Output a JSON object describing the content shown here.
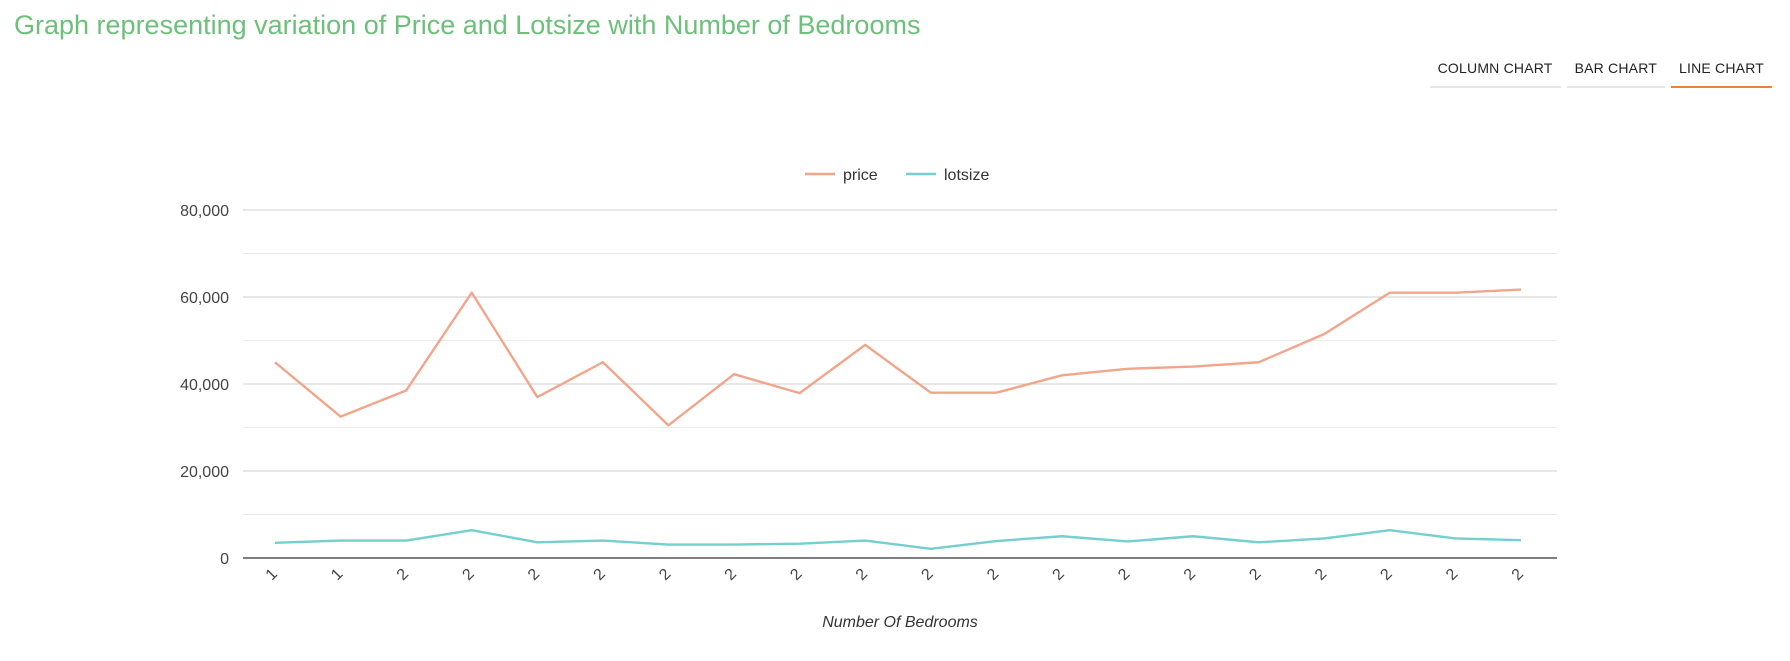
{
  "page": {
    "title": "Graph representing variation of Price and Lotsize with Number of Bedrooms"
  },
  "tabs": [
    {
      "label": "COLUMN CHART",
      "active": false
    },
    {
      "label": "BAR CHART",
      "active": false
    },
    {
      "label": "LINE CHART",
      "active": true
    }
  ],
  "colors": {
    "price": "#f2a58b",
    "lotsize": "#73cfd0",
    "title": "#6cc07a",
    "active_tab": "#e8843c"
  },
  "chart_data": {
    "type": "line",
    "categories": [
      "1",
      "1",
      "2",
      "2",
      "2",
      "2",
      "2",
      "2",
      "2",
      "2",
      "2",
      "2",
      "2",
      "2",
      "2",
      "2",
      "2",
      "2",
      "2",
      "2"
    ],
    "series": [
      {
        "name": "price",
        "values": [
          45000,
          32500,
          38500,
          61000,
          37000,
          45000,
          30500,
          42250,
          37900,
          49000,
          38000,
          38000,
          42000,
          43500,
          44000,
          45000,
          51500,
          61000,
          61000,
          61700
        ]
      },
      {
        "name": "lotsize",
        "values": [
          3500,
          4000,
          4000,
          6400,
          3600,
          4000,
          3100,
          3100,
          3300,
          4000,
          2100,
          3900,
          5000,
          3800,
          5000,
          3600,
          4500,
          6400,
          4500,
          4100
        ]
      }
    ],
    "xlabel": "Number Of Bedrooms",
    "ylabel": "",
    "ylim": [
      0,
      80000
    ],
    "yticks": [
      0,
      20000,
      40000,
      60000,
      80000
    ],
    "ytick_labels": [
      "0",
      "20,000",
      "40,000",
      "60,000",
      "80,000"
    ],
    "grid": true,
    "legend": "top-center"
  }
}
